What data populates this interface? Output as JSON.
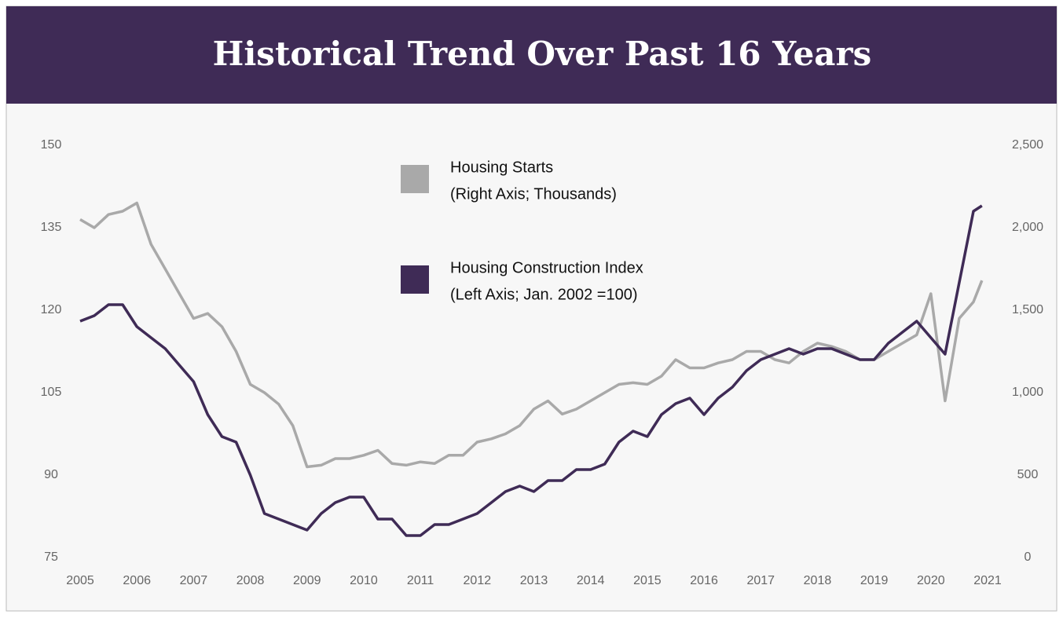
{
  "chart_data": {
    "type": "line",
    "title": "Historical Trend Over Past 16 Years",
    "x": [
      2005,
      2005.25,
      2005.5,
      2005.75,
      2006,
      2006.25,
      2006.5,
      2006.75,
      2007,
      2007.25,
      2007.5,
      2007.75,
      2008,
      2008.25,
      2008.5,
      2008.75,
      2009,
      2009.25,
      2009.5,
      2009.75,
      2010,
      2010.25,
      2010.5,
      2010.75,
      2011,
      2011.25,
      2011.5,
      2011.75,
      2012,
      2012.25,
      2012.5,
      2012.75,
      2013,
      2013.25,
      2013.5,
      2013.75,
      2014,
      2014.25,
      2014.5,
      2014.75,
      2015,
      2015.25,
      2015.5,
      2015.75,
      2016,
      2016.25,
      2016.5,
      2016.75,
      2017,
      2017.25,
      2017.5,
      2017.75,
      2018,
      2018.25,
      2018.5,
      2018.75,
      2019,
      2019.25,
      2019.5,
      2019.75,
      2020,
      2020.25,
      2020.5,
      2020.75,
      2020.9
    ],
    "series": [
      {
        "name": "Housing Starts",
        "note": "(Right Axis; Thousands)",
        "color": "#a9a9a9",
        "axis": "y2",
        "values": [
          2050,
          2000,
          2080,
          2100,
          2150,
          1900,
          1750,
          1600,
          1450,
          1480,
          1400,
          1250,
          1050,
          1000,
          930,
          800,
          550,
          560,
          600,
          600,
          620,
          650,
          570,
          560,
          580,
          570,
          620,
          620,
          700,
          720,
          750,
          800,
          900,
          950,
          870,
          900,
          950,
          1000,
          1050,
          1060,
          1050,
          1100,
          1200,
          1150,
          1150,
          1180,
          1200,
          1250,
          1250,
          1200,
          1180,
          1250,
          1300,
          1280,
          1250,
          1200,
          1200,
          1250,
          1300,
          1350,
          1600,
          950,
          1450,
          1550,
          1680
        ]
      },
      {
        "name": "Housing Construction Index",
        "note": "(Left Axis; Jan. 2002 =100)",
        "color": "#3f2b56",
        "values": [
          118,
          119,
          121,
          121,
          117,
          115,
          113,
          110,
          107,
          101,
          97,
          96,
          90,
          83,
          82,
          81,
          80,
          83,
          85,
          86,
          86,
          82,
          82,
          79,
          79,
          81,
          81,
          82,
          83,
          85,
          87,
          88,
          87,
          89,
          89,
          91,
          91,
          92,
          96,
          98,
          97,
          101,
          103,
          104,
          101,
          104,
          106,
          109,
          111,
          112,
          113,
          112,
          113,
          113,
          112,
          111,
          111,
          114,
          116,
          118,
          115,
          112,
          125,
          138,
          139
        ]
      }
    ],
    "xlim": [
      2005,
      2021
    ],
    "xticks": [
      2005,
      2006,
      2007,
      2008,
      2009,
      2010,
      2011,
      2012,
      2013,
      2014,
      2015,
      2016,
      2017,
      2018,
      2019,
      2020,
      2021
    ],
    "ylim": [
      75,
      150
    ],
    "yticks": [
      75,
      90,
      105,
      120,
      135,
      150
    ],
    "y2lim": [
      0,
      2500
    ],
    "y2ticks": [
      0,
      500,
      {
        "value": 1000,
        "label": "1,000"
      },
      {
        "value": 1500,
        "label": "1,500"
      },
      {
        "value": 2000,
        "label": "2,000"
      },
      {
        "value": 2500,
        "label": "2,500"
      }
    ],
    "legend": "upper center",
    "grid": false
  }
}
